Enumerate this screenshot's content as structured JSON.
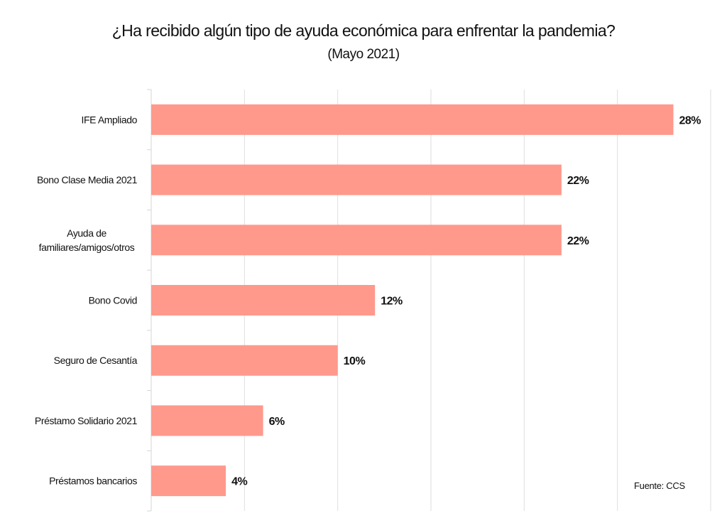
{
  "chart_data": {
    "type": "bar",
    "orientation": "horizontal",
    "title": "¿Ha recibido algún tipo de ayuda económica para enfrentar la pandemia?",
    "subtitle": "(Mayo 2021)",
    "categories": [
      [
        "IFE Ampliado"
      ],
      [
        "Bono Clase Media 2021"
      ],
      [
        "Ayuda de",
        "familiares/amigos/otros"
      ],
      [
        "Bono Covid"
      ],
      [
        "Seguro de Cesantía"
      ],
      [
        "Préstamo Solidario 2021"
      ],
      [
        "Préstamos bancarios"
      ]
    ],
    "values": [
      28,
      22,
      22,
      12,
      10,
      6,
      4
    ],
    "value_labels": [
      "28%",
      "22%",
      "22%",
      "12%",
      "10%",
      "6%",
      "4%"
    ],
    "xlim": [
      0,
      30
    ],
    "grid_step": 5,
    "grid": true,
    "xlabel": "",
    "ylabel": "",
    "bar_color": "#FF998C",
    "source": "Fuente: CCS"
  }
}
